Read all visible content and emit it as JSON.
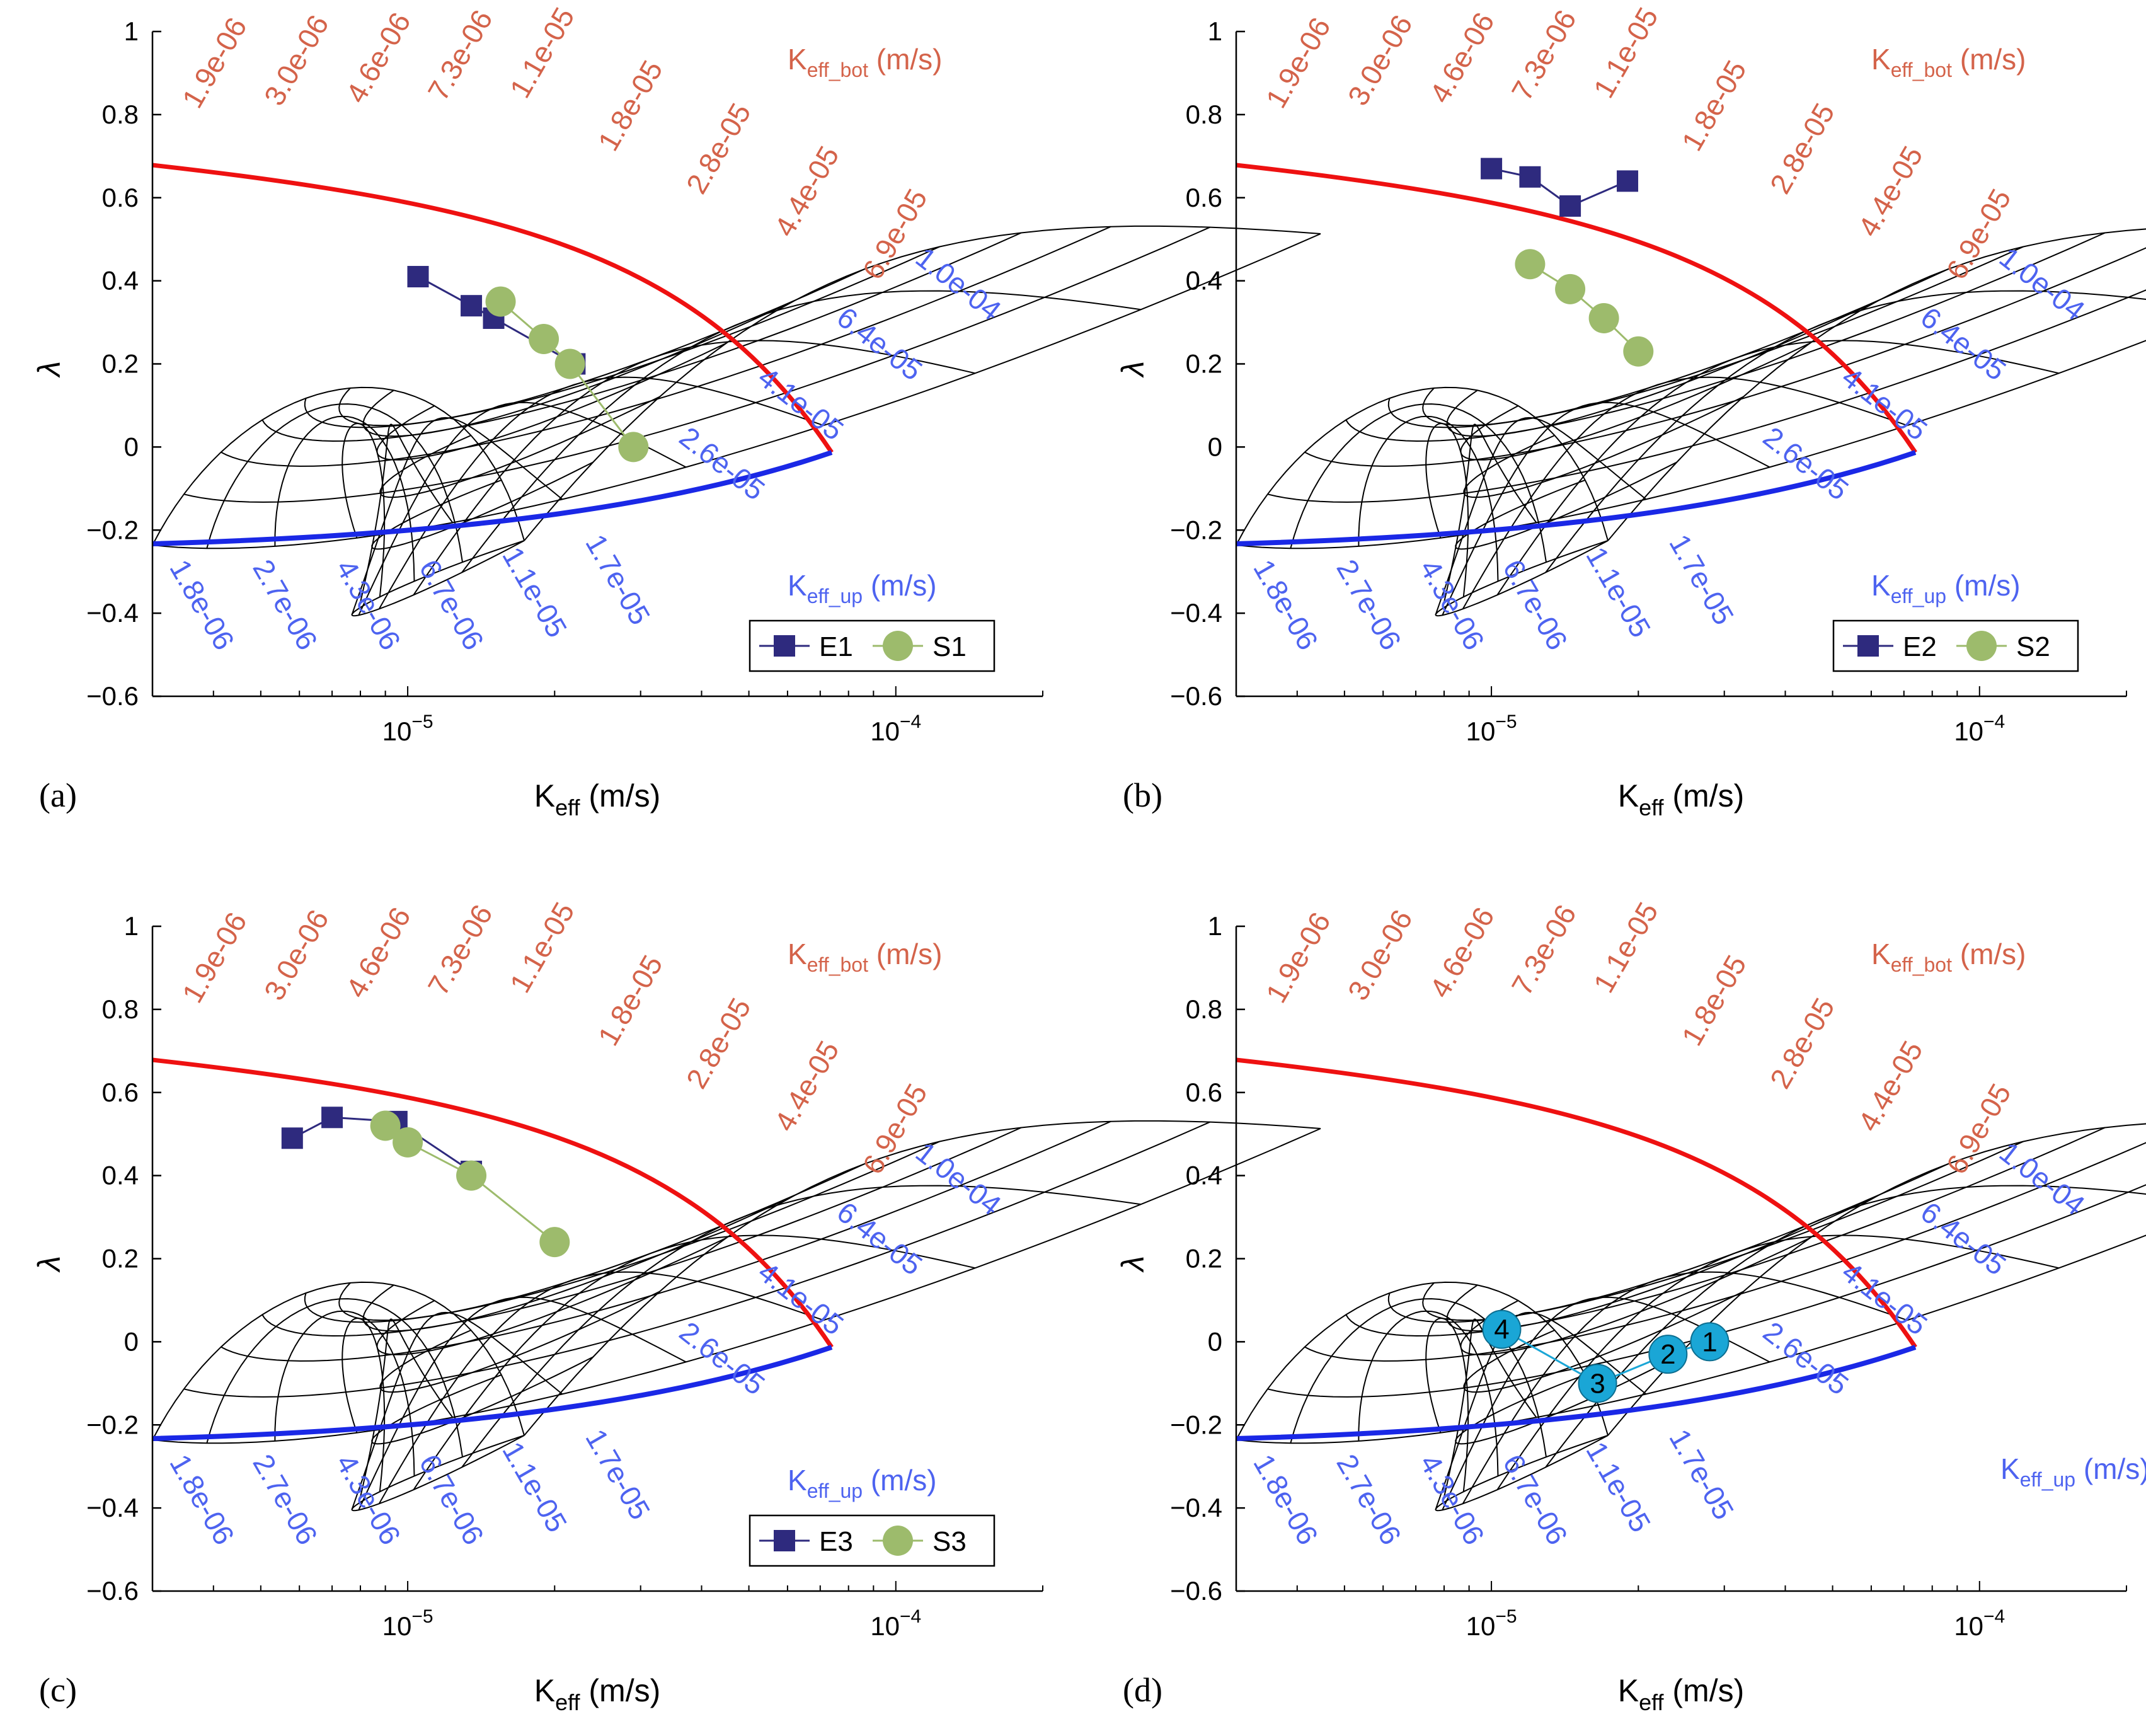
{
  "chart_data": [
    {
      "panel": "(a)",
      "type": "scatter",
      "xlabel": "K",
      "xlabel_sub": "eff",
      "xlabel_unit": " (m/s)",
      "ylabel": "λ",
      "xscale": "log",
      "xlim": [
        3e-06,
        0.0002
      ],
      "ylim": [
        -0.6,
        1.0
      ],
      "x_ticks": [
        {
          "value": 1e-05,
          "label": "10",
          "exp": "−5"
        },
        {
          "value": 0.0001,
          "label": "10",
          "exp": "−4"
        }
      ],
      "y_ticks": [
        "1",
        "0.8",
        "0.6",
        "0.4",
        "0.2",
        "0",
        "−0.2",
        "−0.4",
        "−0.6"
      ],
      "k_bot_title": {
        "k": "K",
        "sub": "eff_bot",
        "unit": " (m/s)"
      },
      "k_up_title": {
        "k": "K",
        "sub": "eff_up",
        "unit": " (m/s)"
      },
      "k_bot_labels": [
        "1.9e-06",
        "3.0e-06",
        "4.6e-06",
        "7.3e-06",
        "1.1e-05",
        "1.8e-05",
        "2.8e-05",
        "4.4e-05",
        "6.9e-05"
      ],
      "k_up_labels": [
        "1.8e-06",
        "2.7e-06",
        "4.3e-06",
        "6.7e-06",
        "1.1e-05",
        "1.7e-05",
        "2.6e-05",
        "4.1e-05",
        "6.4e-05",
        "1.0e-04"
      ],
      "legend": {
        "position": "bottom-right",
        "entries": [
          "E1",
          "S1"
        ]
      },
      "series": [
        {
          "name": "E1",
          "marker": "square",
          "x": [
            1.05e-05,
            1.35e-05,
            1.5e-05,
            2.2e-05
          ],
          "y": [
            0.41,
            0.34,
            0.31,
            0.2
          ]
        },
        {
          "name": "S1",
          "marker": "circle",
          "x": [
            1.55e-05,
            1.9e-05,
            2.15e-05,
            2.9e-05
          ],
          "y": [
            0.35,
            0.26,
            0.2,
            0.0
          ]
        }
      ]
    },
    {
      "panel": "(b)",
      "type": "scatter",
      "xlabel": "K",
      "xlabel_sub": "eff",
      "xlabel_unit": " (m/s)",
      "ylabel": "λ",
      "xscale": "log",
      "xlim": [
        3e-06,
        0.0002
      ],
      "ylim": [
        -0.6,
        1.0
      ],
      "x_ticks": [
        {
          "value": 1e-05,
          "label": "10",
          "exp": "−5"
        },
        {
          "value": 0.0001,
          "label": "10",
          "exp": "−4"
        }
      ],
      "y_ticks": [
        "1",
        "0.8",
        "0.6",
        "0.4",
        "0.2",
        "0",
        "−0.2",
        "−0.4",
        "−0.6"
      ],
      "k_bot_title": {
        "k": "K",
        "sub": "eff_bot",
        "unit": " (m/s)"
      },
      "k_up_title": {
        "k": "K",
        "sub": "eff_up",
        "unit": " (m/s)"
      },
      "k_bot_labels": [
        "1.9e-06",
        "3.0e-06",
        "4.6e-06",
        "7.3e-06",
        "1.1e-05",
        "1.8e-05",
        "2.8e-05",
        "4.4e-05",
        "6.9e-05"
      ],
      "k_up_labels": [
        "1.8e-06",
        "2.7e-06",
        "4.3e-06",
        "6.7e-06",
        "1.1e-05",
        "1.7e-05",
        "2.6e-05",
        "4.1e-05",
        "6.4e-05",
        "1.0e-04"
      ],
      "legend": {
        "position": "bottom-right",
        "entries": [
          "E2",
          "S2"
        ]
      },
      "series": [
        {
          "name": "E2",
          "marker": "square",
          "x": [
            1e-05,
            1.2e-05,
            1.45e-05,
            1.9e-05
          ],
          "y": [
            0.67,
            0.65,
            0.58,
            0.64
          ]
        },
        {
          "name": "S2",
          "marker": "circle",
          "x": [
            1.2e-05,
            1.45e-05,
            1.7e-05,
            2e-05
          ],
          "y": [
            0.44,
            0.38,
            0.31,
            0.23
          ]
        }
      ]
    },
    {
      "panel": "(c)",
      "type": "scatter",
      "xlabel": "K",
      "xlabel_sub": "eff",
      "xlabel_unit": " (m/s)",
      "ylabel": "λ",
      "xscale": "log",
      "xlim": [
        3e-06,
        0.0002
      ],
      "ylim": [
        -0.6,
        1.0
      ],
      "x_ticks": [
        {
          "value": 1e-05,
          "label": "10",
          "exp": "−5"
        },
        {
          "value": 0.0001,
          "label": "10",
          "exp": "−4"
        }
      ],
      "y_ticks": [
        "1",
        "0.8",
        "0.6",
        "0.4",
        "0.2",
        "0",
        "−0.2",
        "−0.4",
        "−0.6"
      ],
      "k_bot_title": {
        "k": "K",
        "sub": "eff_bot",
        "unit": " (m/s)"
      },
      "k_up_title": {
        "k": "K",
        "sub": "eff_up",
        "unit": " (m/s)"
      },
      "k_bot_labels": [
        "1.9e-06",
        "3.0e-06",
        "4.6e-06",
        "7.3e-06",
        "1.1e-05",
        "1.8e-05",
        "2.8e-05",
        "4.4e-05",
        "6.9e-05"
      ],
      "k_up_labels": [
        "1.8e-06",
        "2.7e-06",
        "4.3e-06",
        "6.7e-06",
        "1.1e-05",
        "1.7e-05",
        "2.6e-05",
        "4.1e-05",
        "6.4e-05",
        "1.0e-04"
      ],
      "legend": {
        "position": "bottom-right",
        "entries": [
          "E3",
          "S3"
        ]
      },
      "series": [
        {
          "name": "E3",
          "marker": "square",
          "x": [
            5.8e-06,
            7e-06,
            9.5e-06,
            1.35e-05
          ],
          "y": [
            0.49,
            0.54,
            0.53,
            0.41
          ]
        },
        {
          "name": "S3",
          "marker": "circle",
          "x": [
            9e-06,
            1e-05,
            1.35e-05,
            2e-05
          ],
          "y": [
            0.52,
            0.48,
            0.4,
            0.24
          ]
        }
      ]
    },
    {
      "panel": "(d)",
      "type": "scatter",
      "xlabel": "K",
      "xlabel_sub": "eff",
      "xlabel_unit": " (m/s)",
      "ylabel": "λ",
      "xscale": "log",
      "xlim": [
        3e-06,
        0.0002
      ],
      "ylim": [
        -0.6,
        1.0
      ],
      "x_ticks": [
        {
          "value": 1e-05,
          "label": "10",
          "exp": "−5"
        },
        {
          "value": 0.0001,
          "label": "10",
          "exp": "−4"
        }
      ],
      "y_ticks": [
        "1",
        "0.8",
        "0.6",
        "0.4",
        "0.2",
        "0",
        "−0.2",
        "−0.4",
        "−0.6"
      ],
      "k_bot_title": {
        "k": "K",
        "sub": "eff_bot",
        "unit": " (m/s)"
      },
      "k_up_title": {
        "k": "K",
        "sub": "eff_up",
        "unit": " (m/s)"
      },
      "k_bot_labels": [
        "1.9e-06",
        "3.0e-06",
        "4.6e-06",
        "7.3e-06",
        "1.1e-05",
        "1.8e-05",
        "2.8e-05",
        "4.4e-05",
        "6.9e-05"
      ],
      "k_up_labels": [
        "1.8e-06",
        "2.7e-06",
        "4.3e-06",
        "6.7e-06",
        "1.1e-05",
        "1.7e-05",
        "2.6e-05",
        "4.1e-05",
        "6.4e-05",
        "1.0e-04"
      ],
      "legend": null,
      "series": [
        {
          "name": "points",
          "marker": "numbered-circle",
          "labels": [
            "1",
            "2",
            "3",
            "4"
          ],
          "x": [
            2.8e-05,
            2.3e-05,
            1.65e-05,
            1.05e-05
          ],
          "y": [
            0.0,
            -0.03,
            -0.1,
            0.03
          ]
        }
      ]
    }
  ],
  "colors": {
    "bot": "#d4634a",
    "up": "#4d63f0",
    "red_curve": "#ee1111",
    "blue_curve": "#1a28e6",
    "square": "#2e2a7e",
    "circle": "#9dbb6c",
    "cyan": "#1aa6d6",
    "grid": "#000000"
  }
}
